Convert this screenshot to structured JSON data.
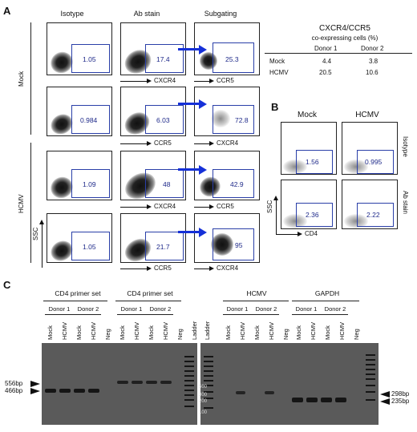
{
  "panel_labels": {
    "a": "A",
    "b": "B",
    "c": "C"
  },
  "panel_a": {
    "column_headers": [
      "Isotype",
      "Ab stain",
      "Subgating"
    ],
    "row_labels": {
      "mock": "Mock",
      "hcmv": "HCMV"
    },
    "axis_ssc": "SSC",
    "rows": [
      {
        "values": [
          "1.05",
          "17.4",
          "25.3"
        ],
        "x_axis": [
          "CXCR4",
          "CCR5"
        ]
      },
      {
        "values": [
          "0.984",
          "6.03",
          "72.8"
        ],
        "x_axis": [
          "CCR5",
          "CXCR4"
        ]
      },
      {
        "values": [
          "1.09",
          "48",
          "42.9"
        ],
        "x_axis": [
          "CXCR4",
          "CCR5"
        ]
      },
      {
        "values": [
          "1.05",
          "21.7",
          "95"
        ],
        "x_axis": [
          "CCR5",
          "CXCR4"
        ]
      }
    ]
  },
  "table": {
    "title": "CXCR4/CCR5",
    "subtitle": "co-expressing cells (%)",
    "headers": [
      "",
      "Donor 1",
      "Donor 2"
    ],
    "rows": [
      [
        "Mock",
        "4.4",
        "3.8"
      ],
      [
        "HCMV",
        "20.5",
        "10.6"
      ]
    ]
  },
  "panel_b": {
    "column_headers": [
      "Mock",
      "HCMV"
    ],
    "row_labels": [
      "Isotype",
      "Ab stain"
    ],
    "values": [
      [
        "1.56",
        "0.995"
      ],
      [
        "2.36",
        "2.22"
      ]
    ],
    "axis_x": "CD4",
    "axis_y": "SSC"
  },
  "panel_c": {
    "group_titles": [
      "CD4 primer set",
      "CD4 primer set",
      "HCMV",
      "GAPDH"
    ],
    "donors": [
      "Donor 1",
      "Donor 2"
    ],
    "lanes_left": [
      "Mock",
      "HCMV",
      "Mock",
      "HCMV",
      "Neg",
      "Mock",
      "HCMV",
      "Mock",
      "HCMV",
      "Neg",
      "Ladder"
    ],
    "lanes_right": [
      "Ladder",
      "Mock",
      "HCMV",
      "Mock",
      "HCMV",
      "Neg",
      "Mock",
      "HCMV",
      "Mock",
      "HCMV",
      "Neg"
    ],
    "ladder_marks": [
      "500",
      "300",
      "200",
      "100"
    ],
    "size_left": [
      "556bp",
      "466bp"
    ],
    "size_right": [
      "298bp",
      "235bp"
    ]
  }
}
